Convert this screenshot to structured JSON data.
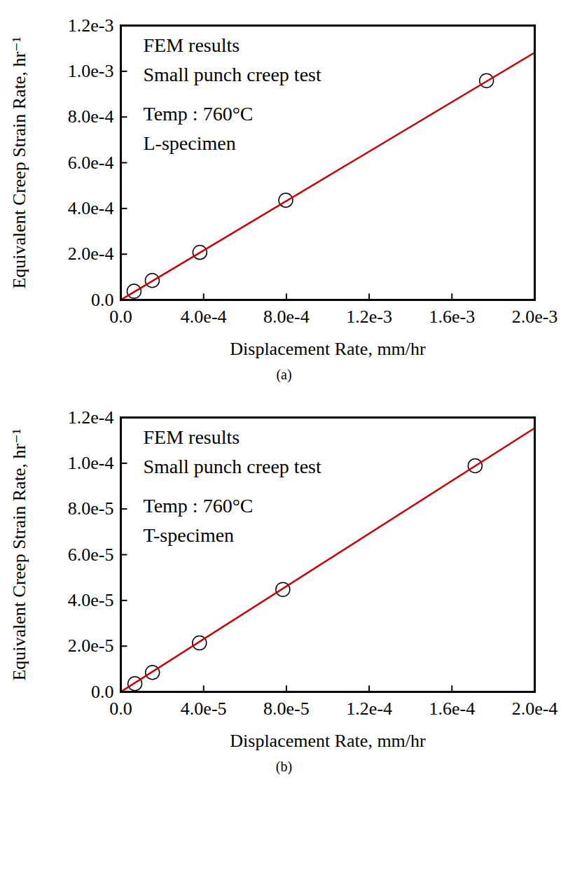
{
  "chart_data": [
    {
      "type": "scatter",
      "caption": "(a)",
      "x_label": "Displacement Rate, mm/hr",
      "y_label": "Equivalent Creep Strain Rate, hr⁻¹",
      "annotations": [
        "FEM results",
        "Small punch creep test",
        "Temp : 760°C",
        "L-specimen"
      ],
      "xlim": [
        0,
        0.002
      ],
      "ylim": [
        0,
        0.0012
      ],
      "xticks": [
        {
          "value": 0,
          "label": "0.0"
        },
        {
          "value": 0.0004,
          "label": "4.0e-4"
        },
        {
          "value": 0.0008,
          "label": "8.0e-4"
        },
        {
          "value": 0.0012,
          "label": "1.2e-3"
        },
        {
          "value": 0.0016,
          "label": "1.6e-3"
        },
        {
          "value": 0.002,
          "label": "2.0e-3"
        }
      ],
      "yticks": [
        {
          "value": 0,
          "label": "0.0"
        },
        {
          "value": 0.0002,
          "label": "2.0e-4"
        },
        {
          "value": 0.0004,
          "label": "4.0e-4"
        },
        {
          "value": 0.0006,
          "label": "6.0e-4"
        },
        {
          "value": 0.0008,
          "label": "8.0e-4"
        },
        {
          "value": 0.001,
          "label": "1.0e-3"
        },
        {
          "value": 0.0012,
          "label": "1.2e-3"
        }
      ],
      "series": [
        {
          "type": "scatter",
          "marker": "circle",
          "color": "#000000",
          "x": [
            6.4e-05,
            0.000152,
            0.000382,
            0.000797,
            0.001767
          ],
          "values": [
            3.8e-05,
            8.5e-05,
            0.000208,
            0.000436,
            0.000959
          ]
        },
        {
          "type": "line",
          "color": "#cc0000",
          "line_style": "solid",
          "x": [
            0,
            0.002
          ],
          "values": [
            0,
            0.001082
          ]
        }
      ]
    },
    {
      "type": "scatter",
      "caption": "(b)",
      "x_label": "Displacement Rate, mm/hr",
      "y_label": "Equivalent Creep Strain Rate, hr⁻¹",
      "annotations": [
        "FEM results",
        "Small punch creep test",
        "Temp : 760°C",
        "T-specimen"
      ],
      "xlim": [
        0,
        0.0002
      ],
      "ylim": [
        0,
        0.00012
      ],
      "xticks": [
        {
          "value": 0,
          "label": "0.0"
        },
        {
          "value": 4e-05,
          "label": "4.0e-5"
        },
        {
          "value": 8e-05,
          "label": "8.0e-5"
        },
        {
          "value": 0.00012,
          "label": "1.2e-4"
        },
        {
          "value": 0.00016,
          "label": "1.6e-4"
        },
        {
          "value": 0.0002,
          "label": "2.0e-4"
        }
      ],
      "yticks": [
        {
          "value": 0,
          "label": "0.0"
        },
        {
          "value": 2e-05,
          "label": "2.0e-5"
        },
        {
          "value": 4e-05,
          "label": "4.0e-5"
        },
        {
          "value": 6e-05,
          "label": "6.0e-5"
        },
        {
          "value": 8e-05,
          "label": "8.0e-5"
        },
        {
          "value": 0.0001,
          "label": "1.0e-4"
        },
        {
          "value": 0.00012,
          "label": "1.2e-4"
        }
      ],
      "series": [
        {
          "type": "scatter",
          "marker": "circle",
          "color": "#000000",
          "x": [
            6.8e-06,
            1.53e-05,
            3.8e-05,
            7.83e-05,
            0.0001712
          ],
          "values": [
            3.6e-06,
            8.5e-06,
            2.14e-05,
            4.48e-05,
            9.89e-05
          ]
        },
        {
          "type": "line",
          "color": "#cc0000",
          "line_style": "solid",
          "x": [
            0,
            0.0002
          ],
          "values": [
            0,
            0.0001154
          ]
        }
      ]
    }
  ]
}
